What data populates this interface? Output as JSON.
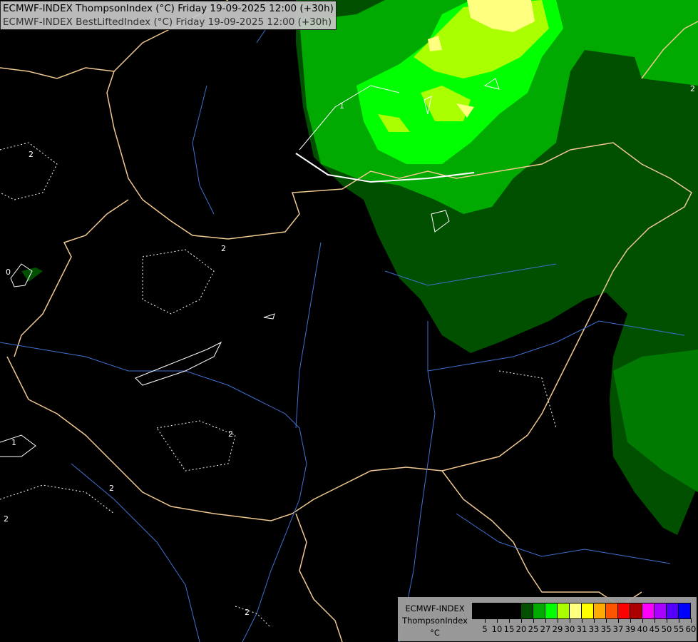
{
  "header": {
    "line1": "ECMWF-INDEX ThompsonIndex (°C) Friday 19-09-2025 12:00 (+30h)",
    "line2": "ECMWF-INDEX BestLiftedIndex (°C) Friday 19-09-2025 12:00 (+30h)"
  },
  "legend": {
    "source": "ECMWF-INDEX",
    "parameter": "ThompsonIndex",
    "unit": "°C",
    "ticks": [
      "5",
      "10",
      "15",
      "20",
      "25",
      "27",
      "29",
      "30",
      "31",
      "33",
      "35",
      "37",
      "39",
      "40",
      "45",
      "50",
      "55",
      "60"
    ],
    "colors": [
      "#000000",
      "#000000",
      "#000000",
      "#000000",
      "#005000",
      "#00aa00",
      "#00ff00",
      "#aaff00",
      "#ffff80",
      "#ffff00",
      "#ffaa00",
      "#ff5500",
      "#ff0000",
      "#aa0000",
      "#ff00ff",
      "#aa00ff",
      "#5500ff",
      "#0000ff"
    ]
  },
  "contour_labels": [
    "2",
    "2",
    "2",
    "2",
    "2",
    "2",
    "2",
    "1",
    "1",
    "0"
  ],
  "colors": {
    "background": "#000000",
    "borders": "#f0c890",
    "rivers": "#4070d0",
    "contours": "#ffffff"
  }
}
